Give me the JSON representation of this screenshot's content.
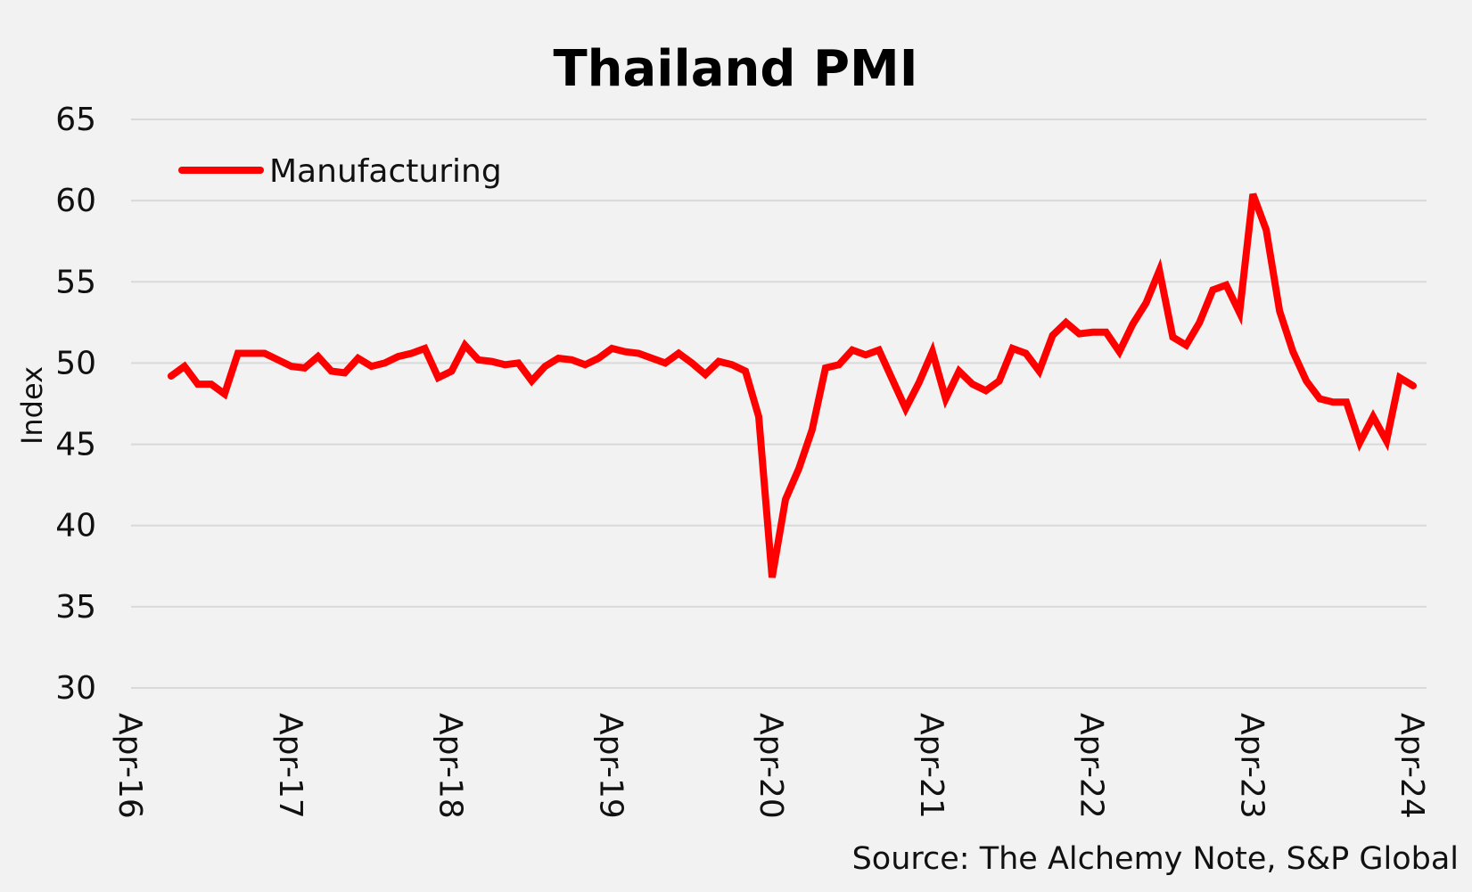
{
  "chart_data": {
    "type": "line",
    "title": "Thailand PMI",
    "ylabel": "Index",
    "xlabel": "",
    "ylim": [
      30,
      65
    ],
    "yticks": [
      30,
      35,
      40,
      45,
      50,
      55,
      60,
      65
    ],
    "xlim": [
      "2016-04",
      "2024-05"
    ],
    "xticks": [
      "Apr-16",
      "Apr-17",
      "Apr-18",
      "Apr-19",
      "Apr-20",
      "Apr-21",
      "Apr-22",
      "Apr-23",
      "Apr-24"
    ],
    "grid": "horizontal",
    "legend_position": "top-left",
    "source": "Source: The Alchemy Note, S&P Global",
    "series": [
      {
        "name": "Manufacturing",
        "color": "#ff0000",
        "x": [
          "2016-07",
          "2016-08",
          "2016-09",
          "2016-10",
          "2016-11",
          "2016-12",
          "2017-01",
          "2017-02",
          "2017-03",
          "2017-04",
          "2017-05",
          "2017-06",
          "2017-07",
          "2017-08",
          "2017-09",
          "2017-10",
          "2017-11",
          "2017-12",
          "2018-01",
          "2018-02",
          "2018-03",
          "2018-04",
          "2018-05",
          "2018-06",
          "2018-07",
          "2018-08",
          "2018-09",
          "2018-10",
          "2018-11",
          "2018-12",
          "2019-01",
          "2019-02",
          "2019-03",
          "2019-04",
          "2019-05",
          "2019-06",
          "2019-07",
          "2019-08",
          "2019-09",
          "2019-10",
          "2019-11",
          "2019-12",
          "2020-01",
          "2020-02",
          "2020-03",
          "2020-04",
          "2020-05",
          "2020-06",
          "2020-07",
          "2020-08",
          "2020-09",
          "2020-10",
          "2020-11",
          "2020-12",
          "2021-01",
          "2021-02",
          "2021-03",
          "2021-04",
          "2021-05",
          "2021-06",
          "2021-07",
          "2021-08",
          "2021-09",
          "2021-10",
          "2021-11",
          "2021-12",
          "2022-01",
          "2022-02",
          "2022-03",
          "2022-04",
          "2022-05",
          "2022-06",
          "2022-07",
          "2022-08",
          "2022-09",
          "2022-10",
          "2022-11",
          "2022-12",
          "2023-01",
          "2023-02",
          "2023-03",
          "2023-04",
          "2023-05",
          "2023-06",
          "2023-07",
          "2023-08",
          "2023-09",
          "2023-10",
          "2023-11",
          "2023-12",
          "2024-01",
          "2024-02",
          "2024-03",
          "2024-04",
          "2024-05"
        ],
        "values": [
          49.2,
          49.8,
          48.7,
          48.7,
          48.1,
          50.6,
          50.6,
          50.6,
          50.2,
          49.8,
          49.7,
          50.4,
          49.5,
          49.4,
          50.3,
          49.8,
          50.0,
          50.4,
          50.6,
          50.9,
          49.1,
          49.5,
          51.1,
          50.2,
          50.1,
          49.9,
          50.0,
          48.9,
          49.8,
          50.3,
          50.2,
          49.9,
          50.3,
          50.9,
          50.7,
          50.6,
          50.3,
          50.0,
          50.6,
          50.0,
          49.3,
          50.1,
          49.9,
          49.5,
          46.7,
          36.8,
          41.6,
          43.5,
          45.9,
          49.7,
          49.9,
          50.8,
          50.5,
          50.8,
          49.0,
          47.2,
          48.8,
          50.7,
          47.8,
          49.5,
          48.7,
          48.3,
          48.9,
          50.9,
          50.6,
          49.5,
          51.7,
          52.5,
          51.8,
          51.9,
          51.9,
          50.7,
          52.4,
          53.7,
          55.7,
          51.6,
          51.1,
          52.5,
          54.5,
          54.8,
          53.1,
          60.4,
          58.2,
          53.2,
          50.7,
          48.9,
          47.8,
          47.6,
          47.6,
          45.1,
          46.7,
          45.2,
          49.1,
          48.6,
          null
        ]
      }
    ]
  }
}
